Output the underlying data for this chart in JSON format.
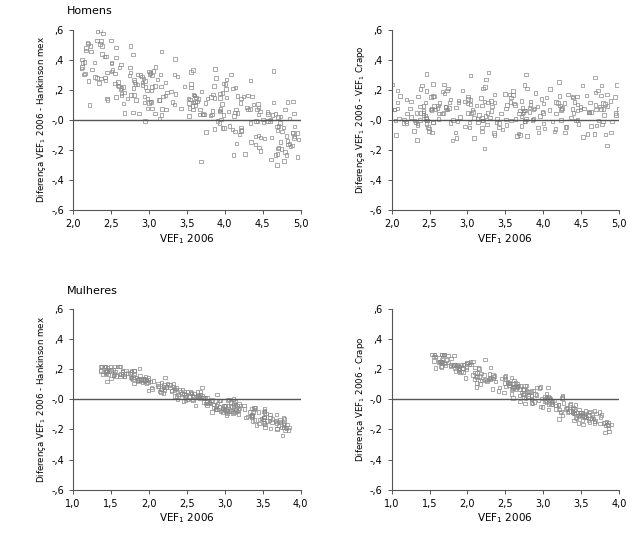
{
  "fig_width": 6.35,
  "fig_height": 5.38,
  "background_color": "#ffffff",
  "marker_style": "s",
  "marker_size": 2.5,
  "marker_color": "#888888",
  "marker_facecolor": "none",
  "line_color": "#555555",
  "line_width": 1.0,
  "panel_TL": {
    "section_label": "Homens",
    "xlabel": "VEF$_1$ 2006",
    "ylabel": "Diferença VEF$_1$ 2006 - Hankinson mex",
    "xlim": [
      2.0,
      5.0
    ],
    "ylim": [
      -0.6,
      0.6
    ],
    "xticks": [
      2.0,
      2.5,
      3.0,
      3.5,
      4.0,
      4.5,
      5.0
    ],
    "yticks": [
      -0.6,
      -0.4,
      -0.2,
      0.0,
      0.2,
      0.4,
      0.6
    ],
    "ytick_labels": [
      "-,6",
      "-,4",
      "-,2",
      "-,0",
      ",2",
      ",4",
      ",6"
    ],
    "xtick_labels": [
      "2,0",
      "2,5",
      "3,0",
      "3,5",
      "4,0",
      "4,5",
      "5,0"
    ]
  },
  "panel_TR": {
    "xlabel": "VEF$_1$ 2006",
    "ylabel": "Diferença VEF$_1$ 2006 - VEF$_1$ Crapo",
    "xlim": [
      2.0,
      5.0
    ],
    "ylim": [
      -0.6,
      0.6
    ],
    "xticks": [
      2.0,
      2.5,
      3.0,
      3.5,
      4.0,
      4.5,
      5.0
    ],
    "yticks": [
      -0.6,
      -0.4,
      -0.2,
      0.0,
      0.2,
      0.4,
      0.6
    ],
    "ytick_labels": [
      "-,6",
      "-,4",
      "-,2",
      "-,0",
      ",2",
      ",4",
      ",6"
    ],
    "xtick_labels": [
      "2,0",
      "2,5",
      "3,0",
      "3,5",
      "4,0",
      "4,5",
      "5,0"
    ]
  },
  "panel_BL": {
    "section_label": "Mulheres",
    "xlabel": "VEF$_1$ 2006",
    "ylabel": "Diferença VEF$_1$ 2006 - Hankinson mex",
    "xlim": [
      1.0,
      4.0
    ],
    "ylim": [
      -0.6,
      0.6
    ],
    "xticks": [
      1.0,
      1.5,
      2.0,
      2.5,
      3.0,
      3.5,
      4.0
    ],
    "yticks": [
      -0.6,
      -0.4,
      -0.2,
      0.0,
      0.2,
      0.4,
      0.6
    ],
    "ytick_labels": [
      "-,6",
      "-,4",
      "-,2",
      "-,0",
      ",2",
      ",4",
      ",6"
    ],
    "xtick_labels": [
      "1,0",
      "1,5",
      "2,0",
      "2,5",
      "3,0",
      "3,5",
      "4,0"
    ]
  },
  "panel_BR": {
    "xlabel": "VEF$_1$ 2006",
    "ylabel": "Diferença VEF$_1$ 2006 - Crapo",
    "xlim": [
      1.0,
      4.0
    ],
    "ylim": [
      -0.6,
      0.6
    ],
    "xticks": [
      1.0,
      1.5,
      2.0,
      2.5,
      3.0,
      3.5,
      4.0
    ],
    "yticks": [
      -0.6,
      -0.4,
      -0.2,
      0.0,
      0.2,
      0.4,
      0.6
    ],
    "ytick_labels": [
      "-,6",
      "-,4",
      "-,2",
      "-,0",
      ",2",
      ",4",
      ",6"
    ],
    "xtick_labels": [
      "1,0",
      "1,5",
      "2,0",
      "2,5",
      "3,0",
      "3,5",
      "4,0"
    ]
  }
}
